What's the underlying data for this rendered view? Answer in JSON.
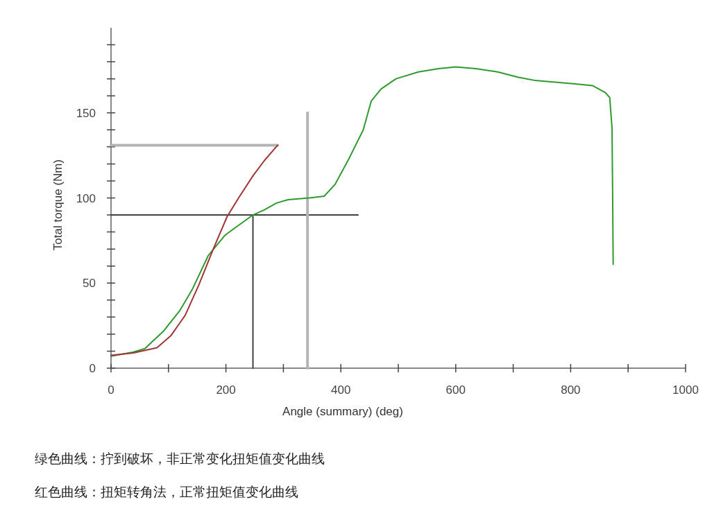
{
  "chart_data": {
    "type": "line",
    "xlabel": "Angle (summary) (deg)",
    "ylabel": "Total torque (Nm)",
    "xlim": [
      0,
      1000
    ],
    "ylim": [
      0,
      200
    ],
    "xticks": [
      0,
      {
        "value": 100,
        "label": null
      },
      200,
      {
        "value": 300,
        "label": null
      },
      400,
      {
        "value": 500,
        "label": null
      },
      600,
      {
        "value": 700,
        "label": null
      },
      800,
      {
        "value": 900,
        "label": null
      },
      1000
    ],
    "yticks": [
      0,
      {
        "value": 10,
        "label": null
      },
      {
        "value": 20,
        "label": null
      },
      {
        "value": 30,
        "label": null
      },
      {
        "value": 40,
        "label": null
      },
      50,
      {
        "value": 60,
        "label": null
      },
      {
        "value": 70,
        "label": null
      },
      {
        "value": 80,
        "label": null
      },
      {
        "value": 90,
        "label": null
      },
      100,
      {
        "value": 110,
        "label": null
      },
      {
        "value": 120,
        "label": null
      },
      {
        "value": 130,
        "label": null
      },
      {
        "value": 140,
        "label": null
      },
      150,
      {
        "value": 160,
        "label": null
      },
      {
        "value": 170,
        "label": null
      },
      {
        "value": 180,
        "label": null
      },
      {
        "value": 190,
        "label": null
      }
    ],
    "series": [
      {
        "color": "#b4b4b4",
        "x": [
          0,
          290
        ],
        "values": [
          131,
          131
        ]
      },
      {
        "color": "#404040",
        "x": [
          0,
          430
        ],
        "values": [
          90,
          90
        ]
      },
      {
        "color": "#404040",
        "x": [
          247,
          247
        ],
        "values": [
          0,
          90
        ]
      },
      {
        "color": "#b4b4b4",
        "x": [
          342,
          342
        ],
        "values": [
          0,
          150
        ]
      },
      {
        "color": "#2e9a2e",
        "x": [
          0,
          39,
          59,
          92,
          120,
          141,
          169,
          198,
          214,
          247,
          267,
          288,
          308,
          345,
          371,
          390,
          414,
          439,
          453,
          470,
          496,
          535,
          570,
          600,
          635,
          673,
          708,
          738,
          773,
          808,
          838,
          860,
          868,
          872,
          873,
          874
        ],
        "values": [
          7,
          9.5,
          11.5,
          22,
          34,
          46,
          66,
          78,
          82,
          90,
          93,
          97,
          99,
          100,
          101,
          108,
          123,
          140,
          157,
          164,
          170,
          174,
          176,
          177,
          176,
          174,
          171,
          169,
          168,
          167,
          166,
          162,
          159,
          141,
          105,
          61
        ]
      },
      {
        "color": "#a03535",
        "x": [
          0,
          39,
          80,
          104,
          129,
          153,
          178,
          202,
          222,
          247,
          267,
          290
        ],
        "values": [
          7.5,
          9,
          12,
          19,
          31,
          49,
          70,
          89,
          100,
          113,
          122,
          131
        ]
      }
    ],
    "annotations": [
      "绿色曲线：拧到破坏，非正常变化扭矩值变化曲线",
      "红色曲线：扭矩转角法，正常扭矩值变化曲线"
    ]
  }
}
